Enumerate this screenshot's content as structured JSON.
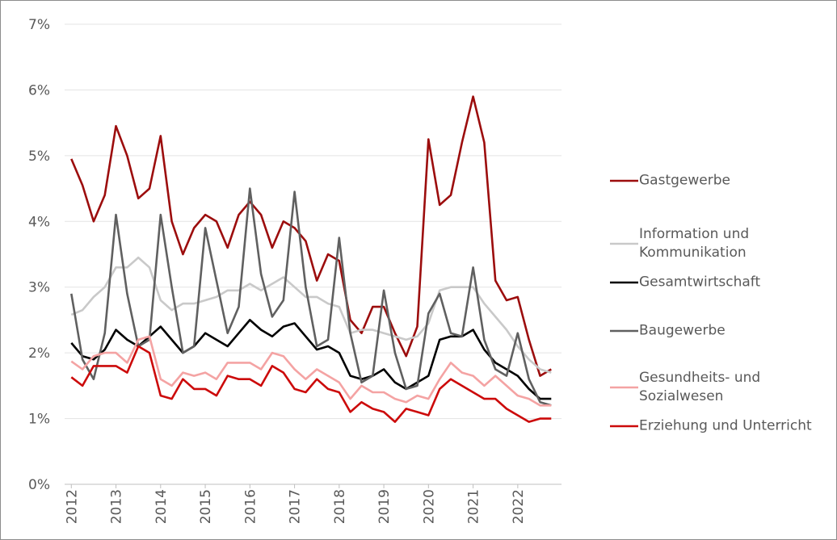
{
  "chart_data": {
    "type": "line",
    "x": [
      2012,
      2012.25,
      2012.5,
      2012.75,
      2013,
      2013.25,
      2013.5,
      2013.75,
      2014,
      2014.25,
      2014.5,
      2014.75,
      2015,
      2015.25,
      2015.5,
      2015.75,
      2016,
      2016.25,
      2016.5,
      2016.75,
      2017,
      2017.25,
      2017.5,
      2017.75,
      2018,
      2018.25,
      2018.5,
      2018.75,
      2019,
      2019.25,
      2019.5,
      2019.75,
      2020,
      2020.25,
      2020.5,
      2020.75,
      2021,
      2021.25,
      2021.5,
      2021.75,
      2022,
      2022.25,
      2022.5,
      2022.75
    ],
    "series": [
      {
        "name": "Gastgewerbe",
        "color": "#9c0d0d",
        "values": [
          4.95,
          4.55,
          4.0,
          4.4,
          5.45,
          5.0,
          4.35,
          4.5,
          5.3,
          4.0,
          3.5,
          3.9,
          4.1,
          4.0,
          3.6,
          4.1,
          4.3,
          4.1,
          3.6,
          4.0,
          3.9,
          3.7,
          3.1,
          3.5,
          3.4,
          2.5,
          2.3,
          2.7,
          2.7,
          2.3,
          1.95,
          2.4,
          5.25,
          4.25,
          4.4,
          5.2,
          5.9,
          5.2,
          3.1,
          2.8,
          2.85,
          2.2,
          1.65,
          1.75
        ]
      },
      {
        "name": "Information und Kommunikation",
        "color": "#c9c9c9",
        "values": [
          2.58,
          2.65,
          2.85,
          3.0,
          3.3,
          3.3,
          3.45,
          3.3,
          2.8,
          2.65,
          2.75,
          2.75,
          2.8,
          2.85,
          2.95,
          2.95,
          3.05,
          2.95,
          3.05,
          3.15,
          3.0,
          2.85,
          2.85,
          2.75,
          2.7,
          2.3,
          2.35,
          2.35,
          2.3,
          2.25,
          2.2,
          2.25,
          2.45,
          2.95,
          3.0,
          3.0,
          3.0,
          2.75,
          2.55,
          2.35,
          2.1,
          1.9,
          1.75,
          1.7
        ]
      },
      {
        "name": "Gesamtwirtschaft",
        "color": "#000000",
        "values": [
          2.15,
          1.95,
          1.9,
          2.05,
          2.35,
          2.2,
          2.1,
          2.25,
          2.4,
          2.2,
          2.0,
          2.1,
          2.3,
          2.2,
          2.1,
          2.3,
          2.5,
          2.35,
          2.25,
          2.4,
          2.45,
          2.25,
          2.05,
          2.1,
          2.0,
          1.65,
          1.6,
          1.65,
          1.75,
          1.55,
          1.45,
          1.55,
          1.65,
          2.2,
          2.25,
          2.25,
          2.35,
          2.05,
          1.85,
          1.75,
          1.65,
          1.45,
          1.3,
          1.3
        ]
      },
      {
        "name": "Baugewerbe",
        "color": "#606060",
        "values": [
          2.9,
          1.9,
          1.6,
          2.3,
          4.1,
          2.9,
          2.1,
          2.2,
          4.1,
          3.0,
          2.0,
          2.1,
          3.9,
          3.1,
          2.3,
          2.7,
          4.5,
          3.2,
          2.55,
          2.8,
          4.45,
          3.0,
          2.1,
          2.2,
          3.75,
          2.3,
          1.55,
          1.65,
          2.95,
          2.0,
          1.45,
          1.5,
          2.6,
          2.9,
          2.3,
          2.25,
          3.3,
          2.2,
          1.75,
          1.65,
          2.3,
          1.6,
          1.25,
          1.2
        ]
      },
      {
        "name": "Gesundheits- und Sozialwesen",
        "color": "#f4a3a3",
        "values": [
          1.87,
          1.75,
          1.95,
          2.0,
          2.0,
          1.85,
          2.2,
          2.25,
          1.6,
          1.5,
          1.7,
          1.65,
          1.7,
          1.6,
          1.85,
          1.85,
          1.85,
          1.75,
          2.0,
          1.95,
          1.75,
          1.6,
          1.75,
          1.65,
          1.55,
          1.3,
          1.5,
          1.4,
          1.4,
          1.3,
          1.25,
          1.35,
          1.3,
          1.6,
          1.85,
          1.7,
          1.65,
          1.5,
          1.65,
          1.5,
          1.35,
          1.3,
          1.2,
          1.2
        ]
      },
      {
        "name": "Erziehung und Unterricht",
        "color": "#cc0a0a",
        "values": [
          1.63,
          1.5,
          1.8,
          1.8,
          1.8,
          1.7,
          2.1,
          2.0,
          1.35,
          1.3,
          1.6,
          1.45,
          1.45,
          1.35,
          1.65,
          1.6,
          1.6,
          1.5,
          1.8,
          1.7,
          1.45,
          1.4,
          1.6,
          1.45,
          1.4,
          1.1,
          1.25,
          1.15,
          1.1,
          0.95,
          1.15,
          1.1,
          1.05,
          1.45,
          1.6,
          1.5,
          1.4,
          1.3,
          1.3,
          1.15,
          1.05,
          0.95,
          1.0,
          1.0
        ]
      }
    ],
    "xlim": [
      2011.85,
      2022.98
    ],
    "xticks": [
      2012,
      2013,
      2014,
      2015,
      2016,
      2017,
      2018,
      2019,
      2020,
      2021,
      2022
    ],
    "ylim": [
      0,
      7
    ],
    "yticks": [
      {
        "value": 0,
        "label": "0%"
      },
      {
        "value": 1,
        "label": "1%"
      },
      {
        "value": 2,
        "label": "2%"
      },
      {
        "value": 3,
        "label": "3%"
      },
      {
        "value": 4,
        "label": "4%"
      },
      {
        "value": 5,
        "label": "5%"
      },
      {
        "value": 6,
        "label": "6%"
      },
      {
        "value": 7,
        "label": "7%"
      }
    ],
    "grid": true,
    "legend": "right"
  }
}
